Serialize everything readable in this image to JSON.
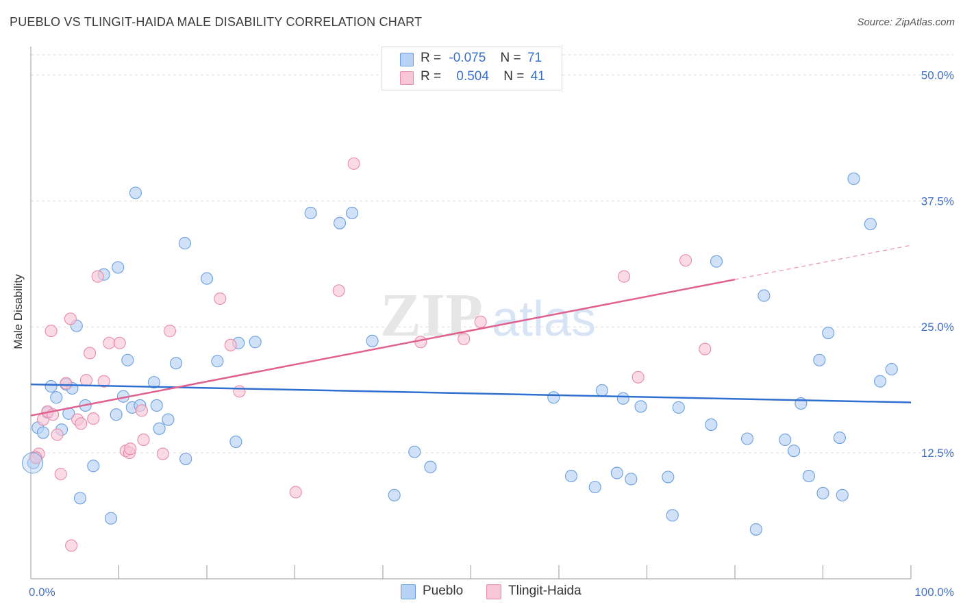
{
  "title": "PUEBLO VS TLINGIT-HAIDA MALE DISABILITY CORRELATION CHART",
  "source": "Source: ZipAtlas.com",
  "watermark": {
    "zip": "ZIP",
    "atlas": "atlas"
  },
  "legend": {
    "r_label": "R =",
    "n_label": "N =",
    "series": [
      {
        "name": "Pueblo",
        "r": "-0.075",
        "n": "71"
      },
      {
        "name": "Tlingit-Haida",
        "r": "0.504",
        "n": "41"
      }
    ]
  },
  "colors": {
    "pueblo_fill": "#b8d2f5",
    "pueblo_stroke": "#6a9ee0",
    "pueblo_line": "#2e6fd0",
    "tlingit_fill": "#f8c6d6",
    "tlingit_stroke": "#e88aa8",
    "tlingit_line": "#e0608e",
    "axis_text": "#4472c4"
  },
  "chart_data": {
    "type": "scatter",
    "title": "PUEBLO VS TLINGIT-HAIDA MALE DISABILITY CORRELATION CHART",
    "xlabel": "",
    "ylabel": "Male Disability",
    "xlim": [
      0,
      100
    ],
    "ylim": [
      0,
      52
    ],
    "x_tick_labels": [
      "0.0%",
      "100.0%"
    ],
    "y_ticks": [
      12.5,
      25.0,
      37.5,
      50.0
    ],
    "y_tick_labels": [
      "12.5%",
      "25.0%",
      "37.5%",
      "50.0%"
    ],
    "grid": true,
    "series": [
      {
        "name": "Pueblo",
        "points": [
          [
            0.8,
            15.0
          ],
          [
            1.4,
            14.5
          ],
          [
            2.3,
            19.1
          ],
          [
            2.9,
            18.0
          ],
          [
            3.5,
            14.8
          ],
          [
            4.0,
            19.3
          ],
          [
            4.3,
            16.4
          ],
          [
            4.7,
            18.9
          ],
          [
            5.2,
            25.1
          ],
          [
            5.6,
            8.0
          ],
          [
            6.2,
            17.2
          ],
          [
            7.1,
            11.2
          ],
          [
            8.3,
            30.2
          ],
          [
            9.1,
            6.0
          ],
          [
            9.7,
            16.3
          ],
          [
            9.9,
            30.9
          ],
          [
            10.5,
            18.1
          ],
          [
            11.0,
            21.7
          ],
          [
            11.5,
            17.0
          ],
          [
            11.9,
            38.3
          ],
          [
            12.4,
            17.2
          ],
          [
            14.0,
            19.5
          ],
          [
            14.3,
            17.2
          ],
          [
            14.6,
            14.9
          ],
          [
            15.6,
            15.8
          ],
          [
            16.5,
            21.4
          ],
          [
            17.5,
            33.3
          ],
          [
            17.6,
            11.9
          ],
          [
            20.0,
            29.8
          ],
          [
            21.2,
            21.6
          ],
          [
            23.3,
            13.6
          ],
          [
            23.6,
            23.4
          ],
          [
            25.5,
            23.5
          ],
          [
            31.8,
            36.3
          ],
          [
            35.1,
            35.3
          ],
          [
            36.5,
            36.3
          ],
          [
            38.8,
            23.6
          ],
          [
            41.3,
            8.3
          ],
          [
            43.6,
            12.6
          ],
          [
            45.4,
            11.1
          ],
          [
            59.4,
            18.0
          ],
          [
            61.4,
            10.2
          ],
          [
            64.1,
            9.1
          ],
          [
            64.9,
            18.7
          ],
          [
            66.6,
            10.5
          ],
          [
            67.3,
            17.9
          ],
          [
            68.2,
            9.9
          ],
          [
            69.3,
            17.1
          ],
          [
            72.4,
            10.1
          ],
          [
            72.9,
            6.3
          ],
          [
            73.6,
            17.0
          ],
          [
            77.3,
            15.3
          ],
          [
            77.9,
            31.5
          ],
          [
            81.4,
            13.9
          ],
          [
            82.4,
            4.9
          ],
          [
            83.3,
            28.1
          ],
          [
            85.7,
            13.8
          ],
          [
            86.7,
            12.7
          ],
          [
            87.5,
            17.4
          ],
          [
            88.4,
            10.2
          ],
          [
            89.6,
            21.7
          ],
          [
            90.0,
            8.5
          ],
          [
            90.6,
            24.4
          ],
          [
            91.9,
            14.0
          ],
          [
            92.2,
            8.3
          ],
          [
            93.5,
            39.7
          ],
          [
            95.4,
            35.2
          ],
          [
            96.5,
            19.6
          ],
          [
            97.8,
            20.8
          ],
          [
            0.3,
            11.5
          ],
          [
            1.9,
            16.5
          ]
        ],
        "trend": {
          "x": [
            0,
            100
          ],
          "y": [
            19.3,
            17.5
          ]
        }
      },
      {
        "name": "Tlingit-Haida",
        "points": [
          [
            0.5,
            12.1
          ],
          [
            0.9,
            12.4
          ],
          [
            1.4,
            15.8
          ],
          [
            1.9,
            16.6
          ],
          [
            2.3,
            24.6
          ],
          [
            2.5,
            16.3
          ],
          [
            3.0,
            14.3
          ],
          [
            3.4,
            10.4
          ],
          [
            4.0,
            19.4
          ],
          [
            4.5,
            25.8
          ],
          [
            4.6,
            3.3
          ],
          [
            5.3,
            15.8
          ],
          [
            5.7,
            15.4
          ],
          [
            6.3,
            19.7
          ],
          [
            6.7,
            22.4
          ],
          [
            7.1,
            15.9
          ],
          [
            7.6,
            30.0
          ],
          [
            8.3,
            19.6
          ],
          [
            8.9,
            23.4
          ],
          [
            10.1,
            23.4
          ],
          [
            10.8,
            12.7
          ],
          [
            11.2,
            12.5
          ],
          [
            11.3,
            12.9
          ],
          [
            12.6,
            16.7
          ],
          [
            12.8,
            13.8
          ],
          [
            15.0,
            12.4
          ],
          [
            15.8,
            24.6
          ],
          [
            21.5,
            27.8
          ],
          [
            22.7,
            23.2
          ],
          [
            23.7,
            18.6
          ],
          [
            30.1,
            8.6
          ],
          [
            35.0,
            28.6
          ],
          [
            36.7,
            41.2
          ],
          [
            44.3,
            23.5
          ],
          [
            49.2,
            23.8
          ],
          [
            51.1,
            25.5
          ],
          [
            67.4,
            30.0
          ],
          [
            69.0,
            20.0
          ],
          [
            74.4,
            31.6
          ],
          [
            76.6,
            22.8
          ],
          [
            0.6,
            12.0
          ]
        ],
        "trend": {
          "x": [
            0,
            80
          ],
          "y": [
            16.2,
            29.7
          ],
          "dashed_to": {
            "x": 100,
            "y": 33.1
          }
        }
      }
    ]
  }
}
